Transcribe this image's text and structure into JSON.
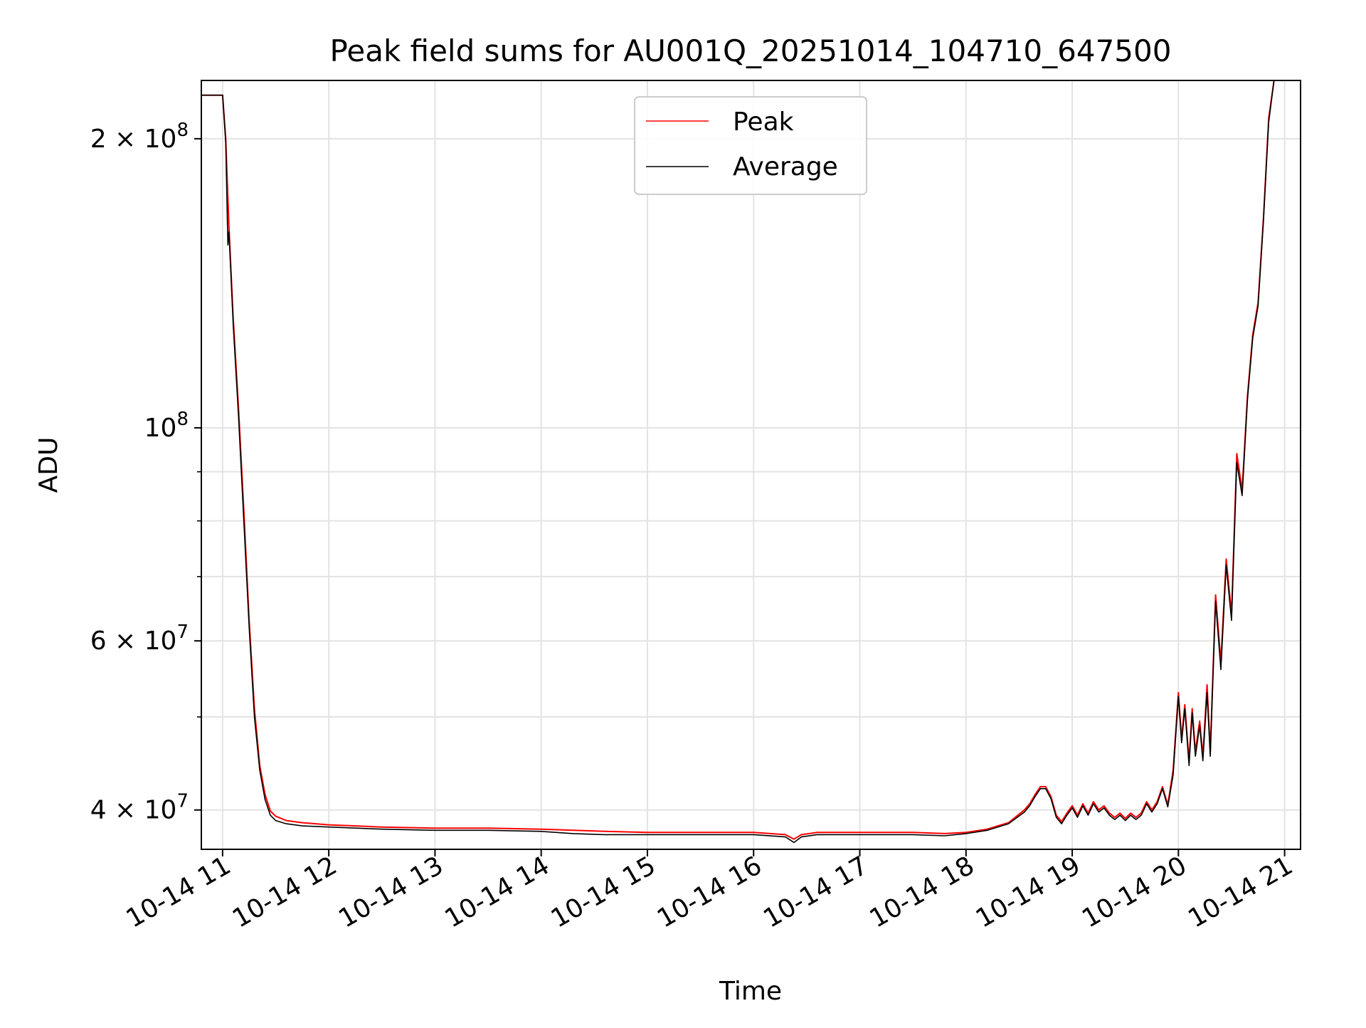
{
  "chart_data": {
    "type": "line",
    "title": "Peak field sums for AU001Q_20251014_104710_647500",
    "xlabel": "Time",
    "ylabel": "ADU",
    "yscale": "log",
    "ylim": [
      36400000,
      230000000
    ],
    "xlim": [
      10.8,
      21.15
    ],
    "grid": true,
    "legend_position": "upper center",
    "x_tick_labels": [
      {
        "x": 11,
        "label": "10-14 11"
      },
      {
        "x": 12,
        "label": "10-14 12"
      },
      {
        "x": 13,
        "label": "10-14 13"
      },
      {
        "x": 14,
        "label": "10-14 14"
      },
      {
        "x": 15,
        "label": "10-14 15"
      },
      {
        "x": 16,
        "label": "10-14 16"
      },
      {
        "x": 17,
        "label": "10-14 17"
      },
      {
        "x": 18,
        "label": "10-14 18"
      },
      {
        "x": 19,
        "label": "10-14 19"
      },
      {
        "x": 20,
        "label": "10-14 20"
      },
      {
        "x": 21,
        "label": "10-14 21"
      }
    ],
    "y_major_ticks": [
      {
        "value": 40000000,
        "mantissa": "4 × 10",
        "exponent": "7"
      },
      {
        "value": 60000000,
        "mantissa": "6 × 10",
        "exponent": "7"
      },
      {
        "value": 100000000,
        "mantissa": "10",
        "exponent": "8"
      },
      {
        "value": 200000000,
        "mantissa": "2 × 10",
        "exponent": "8"
      }
    ],
    "y_minor_ticks": [
      50000000,
      70000000,
      80000000,
      90000000,
      300000000
    ],
    "series": [
      {
        "name": "Peak",
        "color": "#ff0000",
        "x": [
          10.8,
          10.95,
          11.0,
          11.03,
          11.06,
          11.1,
          11.15,
          11.2,
          11.25,
          11.3,
          11.35,
          11.4,
          11.45,
          11.5,
          11.6,
          11.75,
          12.0,
          12.5,
          13.0,
          13.5,
          14.0,
          14.3,
          14.6,
          15.0,
          15.5,
          16.0,
          16.3,
          16.38,
          16.45,
          16.6,
          17.0,
          17.5,
          17.8,
          18.0,
          18.2,
          18.4,
          18.55,
          18.6,
          18.65,
          18.7,
          18.75,
          18.8,
          18.85,
          18.9,
          18.95,
          19.0,
          19.05,
          19.1,
          19.15,
          19.2,
          19.25,
          19.3,
          19.35,
          19.4,
          19.45,
          19.5,
          19.55,
          19.6,
          19.65,
          19.7,
          19.75,
          19.8,
          19.85,
          19.9,
          19.95,
          20.0,
          20.03,
          20.06,
          20.1,
          20.13,
          20.16,
          20.2,
          20.23,
          20.27,
          20.3,
          20.35,
          20.4,
          20.45,
          20.5,
          20.55,
          20.6,
          20.65,
          20.7,
          20.75,
          20.8,
          20.85,
          20.9,
          20.95,
          21.0,
          21.15
        ],
        "y": [
          222000000,
          222000000,
          222000000,
          200000000,
          162000000,
          130000000,
          105000000,
          82000000,
          63000000,
          51000000,
          44500000,
          41500000,
          39900000,
          39400000,
          39000000,
          38800000,
          38600000,
          38400000,
          38300000,
          38300000,
          38200000,
          38100000,
          38000000,
          37900000,
          37900000,
          37900000,
          37700000,
          37300000,
          37700000,
          37900000,
          37900000,
          37900000,
          37800000,
          37900000,
          38200000,
          38800000,
          40000000,
          40600000,
          41500000,
          42300000,
          42300000,
          41300000,
          39500000,
          38900000,
          39700000,
          40400000,
          39500000,
          40600000,
          39700000,
          40800000,
          40000000,
          40400000,
          39700000,
          39300000,
          39700000,
          39200000,
          39700000,
          39300000,
          39700000,
          40800000,
          40000000,
          40800000,
          42300000,
          40500000,
          44000000,
          53000000,
          47500000,
          51500000,
          45000000,
          51000000,
          46000000,
          49500000,
          45500000,
          54000000,
          46000000,
          67000000,
          57000000,
          73000000,
          64000000,
          94000000,
          86000000,
          108000000,
          125000000,
          135000000,
          165000000,
          210000000,
          230000000,
          230000000,
          230000000,
          230000000
        ]
      },
      {
        "name": "Average",
        "color": "#000000",
        "x": [
          10.8,
          10.95,
          11.0,
          11.03,
          11.05,
          11.06,
          11.1,
          11.15,
          11.2,
          11.25,
          11.3,
          11.35,
          11.4,
          11.45,
          11.5,
          11.6,
          11.75,
          12.0,
          12.5,
          13.0,
          13.5,
          14.0,
          14.3,
          14.6,
          15.0,
          15.5,
          16.0,
          16.3,
          16.38,
          16.45,
          16.6,
          17.0,
          17.5,
          17.8,
          18.0,
          18.2,
          18.4,
          18.55,
          18.6,
          18.65,
          18.7,
          18.75,
          18.8,
          18.85,
          18.9,
          18.95,
          19.0,
          19.05,
          19.1,
          19.15,
          19.2,
          19.25,
          19.3,
          19.35,
          19.4,
          19.45,
          19.5,
          19.55,
          19.6,
          19.65,
          19.7,
          19.75,
          19.8,
          19.85,
          19.9,
          19.95,
          20.0,
          20.03,
          20.06,
          20.1,
          20.13,
          20.16,
          20.2,
          20.23,
          20.27,
          20.3,
          20.35,
          20.4,
          20.45,
          20.5,
          20.55,
          20.6,
          20.65,
          20.7,
          20.75,
          20.8,
          20.85,
          20.9,
          20.95,
          21.0,
          21.15
        ],
        "y": [
          222000000,
          222000000,
          222000000,
          198000000,
          155000000,
          160000000,
          128000000,
          103000000,
          80000000,
          62000000,
          50000000,
          44000000,
          41000000,
          39500000,
          39000000,
          38700000,
          38500000,
          38400000,
          38200000,
          38100000,
          38100000,
          38000000,
          37800000,
          37700000,
          37700000,
          37700000,
          37700000,
          37500000,
          37000000,
          37500000,
          37700000,
          37700000,
          37700000,
          37600000,
          37800000,
          38100000,
          38700000,
          39800000,
          40400000,
          41300000,
          42100000,
          42100000,
          41100000,
          39300000,
          38700000,
          39500000,
          40200000,
          39300000,
          40400000,
          39500000,
          40600000,
          39800000,
          40200000,
          39500000,
          39100000,
          39500000,
          39000000,
          39500000,
          39100000,
          39500000,
          40600000,
          39800000,
          40600000,
          42100000,
          40300000,
          43500000,
          52500000,
          47000000,
          51000000,
          44500000,
          50500000,
          45500000,
          49000000,
          45000000,
          53000000,
          45500000,
          66000000,
          56000000,
          72000000,
          63000000,
          92000000,
          85000000,
          107000000,
          124000000,
          134000000,
          164000000,
          208000000,
          230000000,
          230000000,
          230000000,
          230000000
        ]
      }
    ]
  }
}
